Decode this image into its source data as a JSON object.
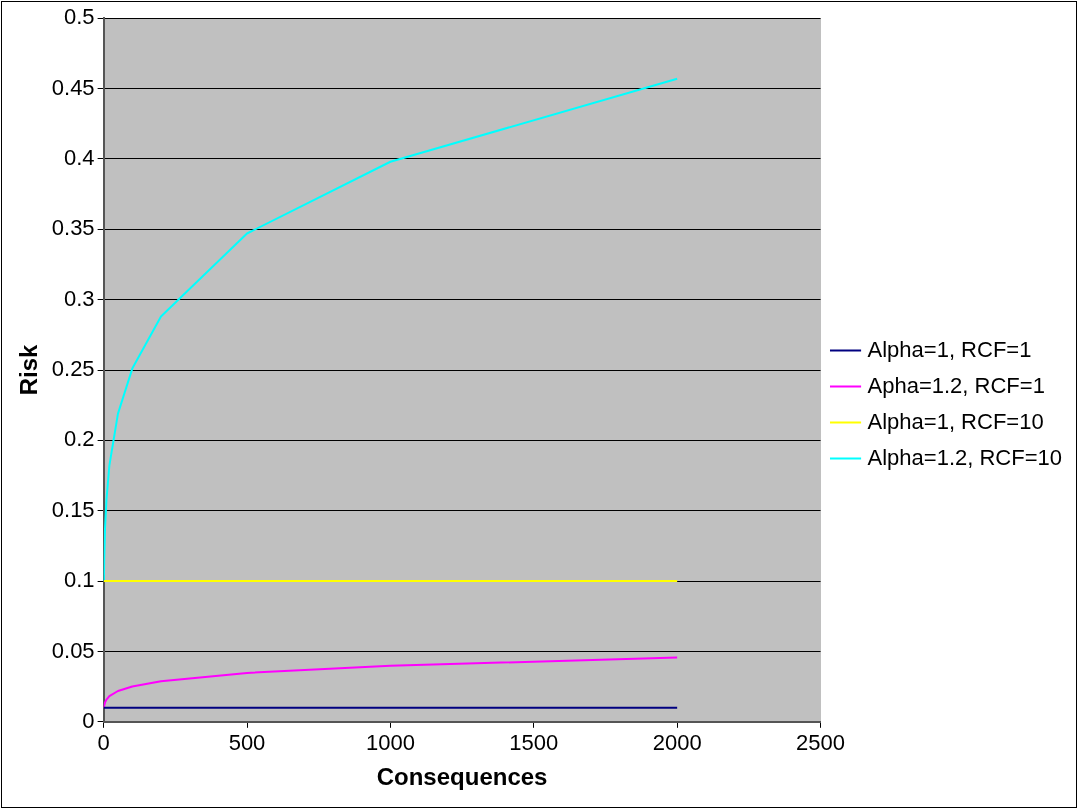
{
  "chart_data": {
    "type": "line",
    "xlabel": "Consequences",
    "ylabel": "Risk",
    "xlim": [
      0,
      2500
    ],
    "xticks": [
      0,
      500,
      1000,
      1500,
      2000,
      2500
    ],
    "ylim": [
      0,
      0.5
    ],
    "yticks": [
      0,
      0.05,
      0.1,
      0.15,
      0.2,
      0.25,
      0.3,
      0.35,
      0.4,
      0.45,
      0.5
    ],
    "grid": "y",
    "legend": "right",
    "marker": "none",
    "line_style": "solid",
    "series": [
      {
        "name": "Alpha=1, RCF=1",
        "color": "#000080",
        "x": [
          1,
          2,
          5,
          10,
          20,
          50,
          100,
          200,
          500,
          1000,
          2000
        ],
        "values": [
          0.01,
          0.01,
          0.01,
          0.01,
          0.01,
          0.01,
          0.01,
          0.01,
          0.01,
          0.01,
          0.01
        ]
      },
      {
        "name": "Apha=1.2, RCF=1",
        "color": "#ff00ff",
        "x": [
          1,
          2,
          5,
          10,
          20,
          50,
          100,
          200,
          500,
          1000,
          2000
        ],
        "values": [
          0.01,
          0.0115,
          0.0138,
          0.0158,
          0.0182,
          0.0219,
          0.0251,
          0.0288,
          0.0347,
          0.0398,
          0.0457
        ]
      },
      {
        "name": "Alpha=1, RCF=10",
        "color": "#ffff00",
        "x": [
          1,
          2,
          5,
          10,
          20,
          50,
          100,
          200,
          500,
          1000,
          2000
        ],
        "values": [
          0.1,
          0.1,
          0.1,
          0.1,
          0.1,
          0.1,
          0.1,
          0.1,
          0.1,
          0.1,
          0.1
        ]
      },
      {
        "name": "Alpha=1.2, RCF=10",
        "color": "#00ffff",
        "x": [
          1,
          2,
          5,
          10,
          20,
          50,
          100,
          200,
          500,
          1000,
          2000
        ],
        "values": [
          0.1,
          0.115,
          0.138,
          0.158,
          0.182,
          0.219,
          0.251,
          0.288,
          0.347,
          0.398,
          0.457
        ]
      }
    ]
  }
}
